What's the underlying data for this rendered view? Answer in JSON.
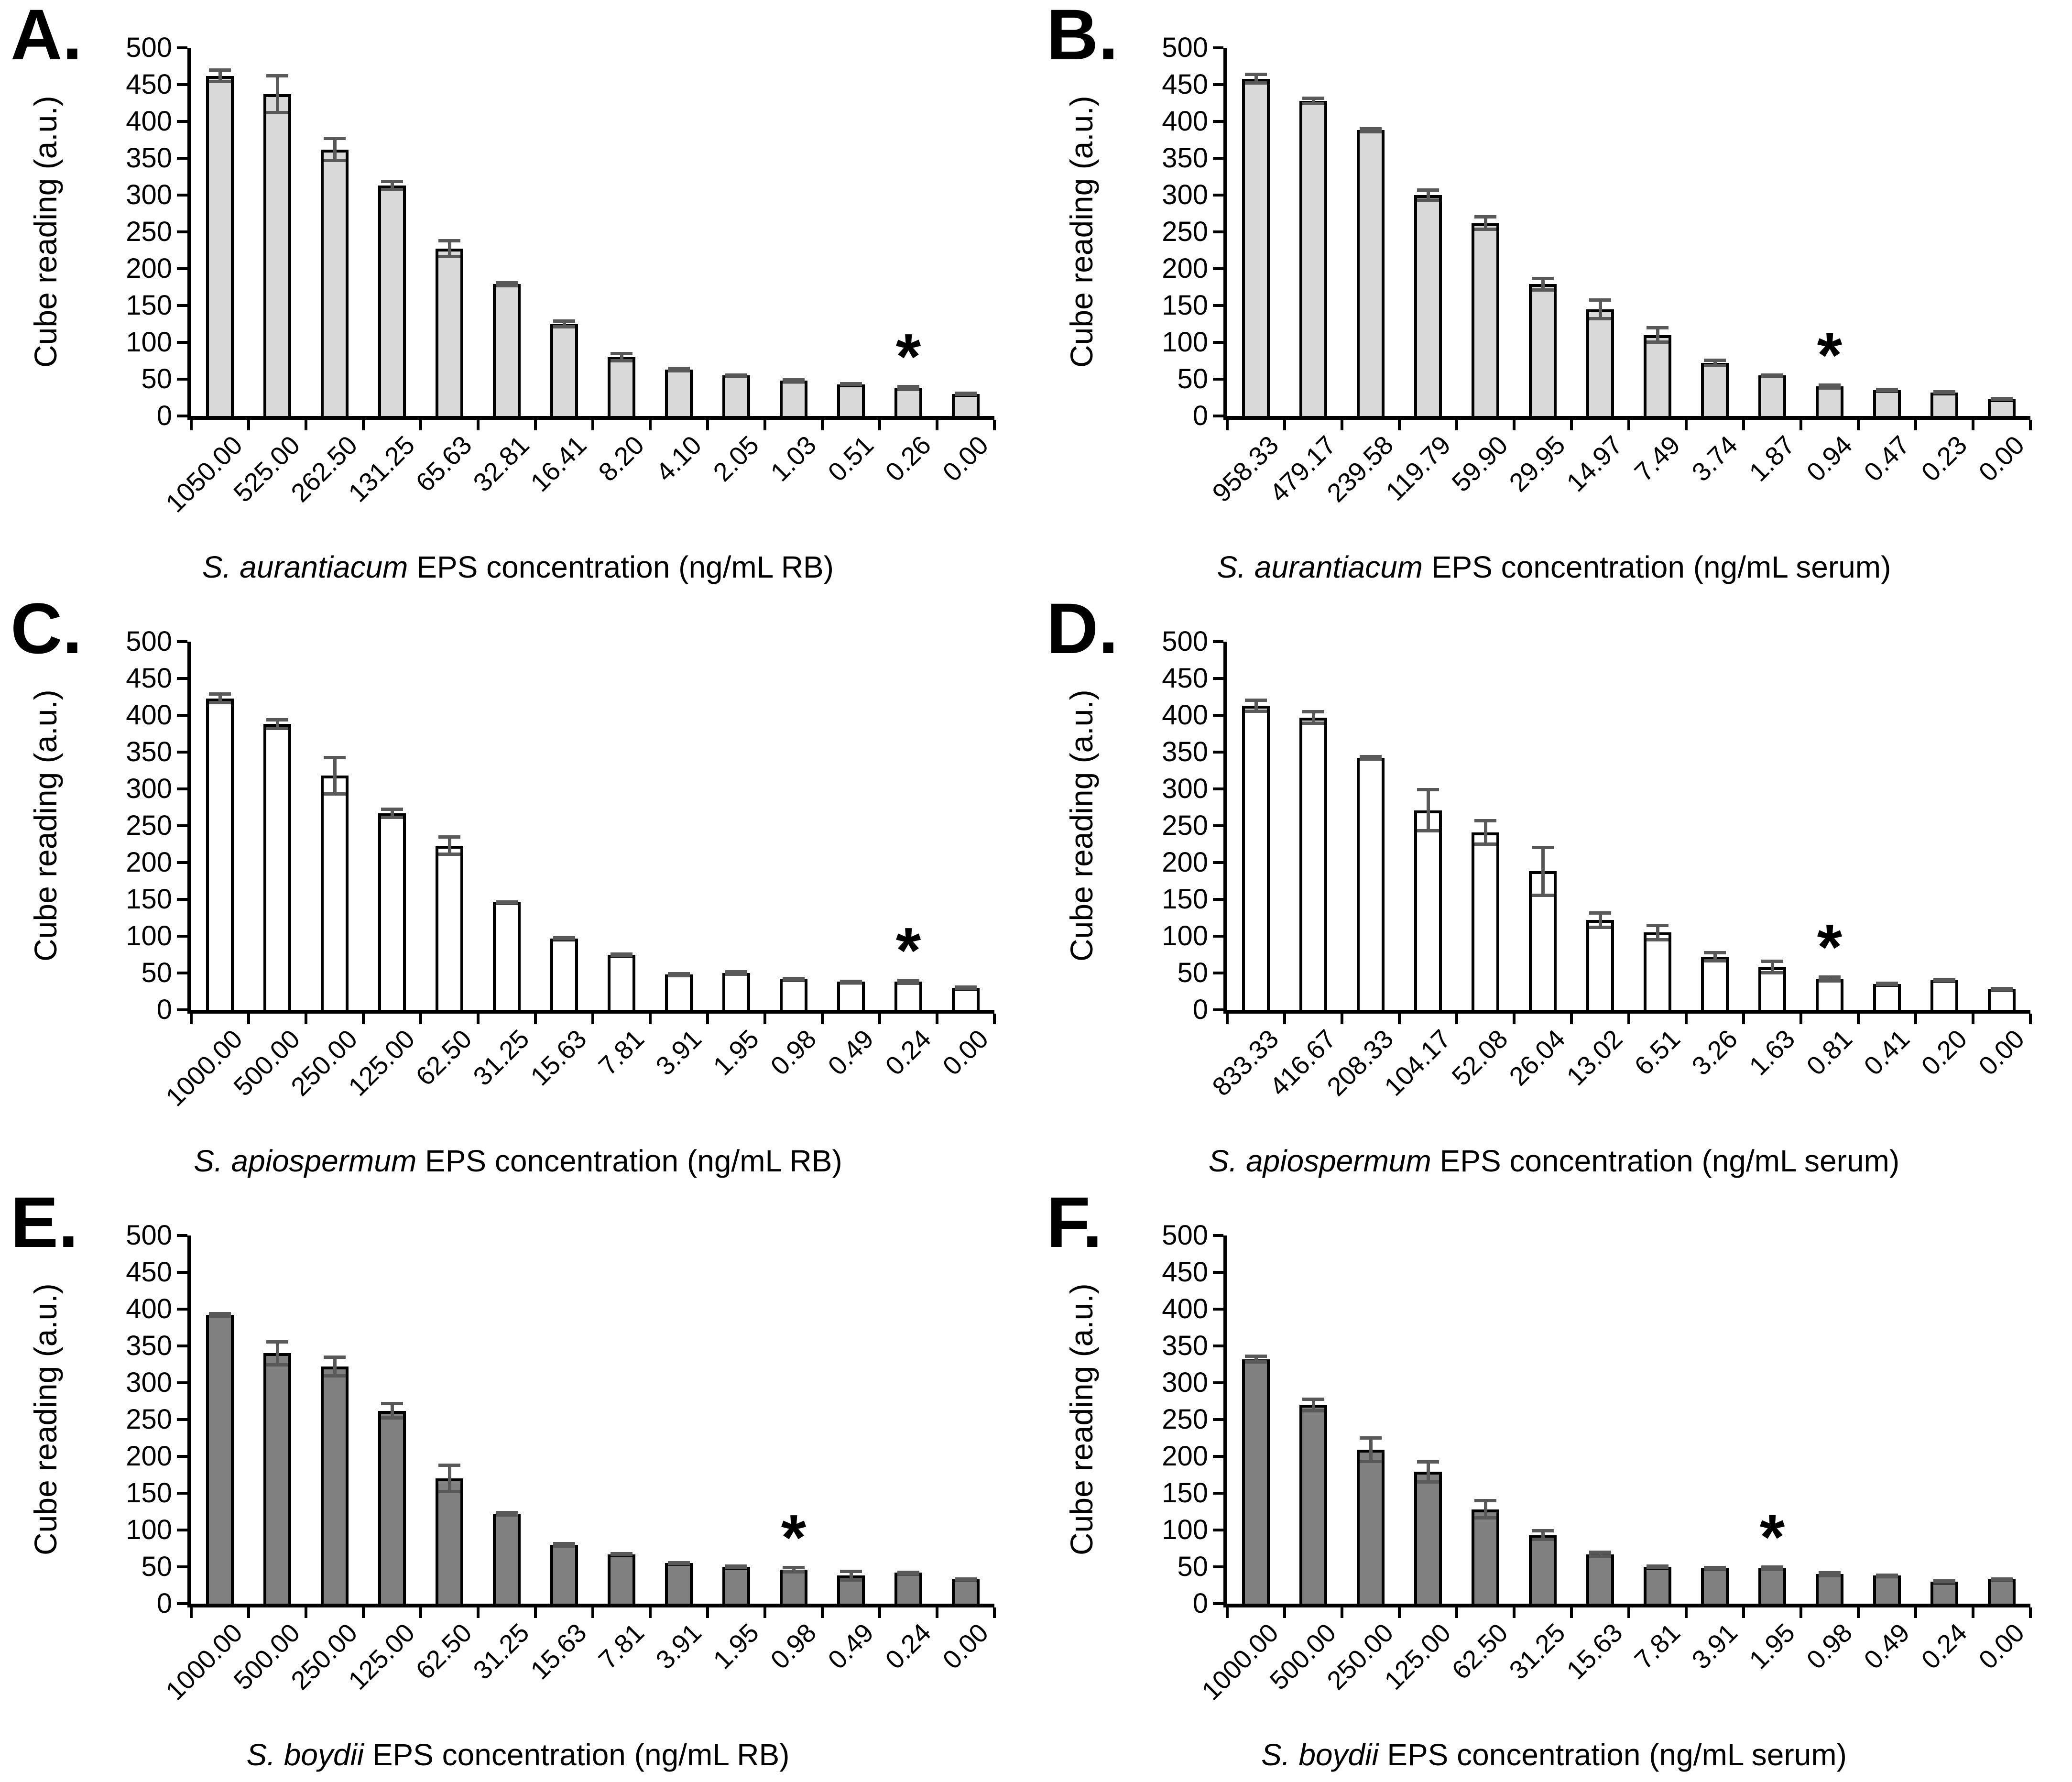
{
  "figure": {
    "background": "#ffffff",
    "axis_color": "#000000",
    "bar_outline_color": "#000000",
    "error_bar_color": "#595959",
    "y_axis_label": "Cube reading (a.u.)"
  },
  "chart_data": [
    {
      "type": "bar",
      "panel_letter": "A.",
      "title_species": "S. aurantiacum",
      "title_rest": " EPS concentration (ng/mL RB)",
      "ylabel": "Cube reading (a.u.)",
      "ylim": [
        0,
        500
      ],
      "y_tick_step": 50,
      "grid": false,
      "bar_fill": "#d9d9d9",
      "categories": [
        "1050.00",
        "525.00",
        "262.50",
        "131.25",
        "65.63",
        "32.81",
        "16.41",
        "8.20",
        "4.10",
        "2.05",
        "1.03",
        "0.51",
        "0.26",
        "0.00"
      ],
      "values": [
        462,
        437,
        362,
        313,
        227,
        179,
        125,
        80,
        63,
        55,
        48,
        43,
        38,
        30
      ],
      "errors": [
        10,
        27,
        17,
        8,
        13,
        4,
        6,
        7,
        4,
        3,
        3,
        3,
        4,
        3
      ],
      "star_index": 12,
      "star_label": "*"
    },
    {
      "type": "bar",
      "panel_letter": "B.",
      "title_species": "S. aurantiacum",
      "title_rest": " EPS concentration (ng/mL serum)",
      "ylabel": "Cube reading (a.u.)",
      "ylim": [
        0,
        500
      ],
      "y_tick_step": 50,
      "grid": false,
      "bar_fill": "#d9d9d9",
      "categories": [
        "958.33",
        "479.17",
        "239.58",
        "119.79",
        "59.90",
        "29.95",
        "14.97",
        "7.49",
        "3.74",
        "1.87",
        "0.94",
        "0.47",
        "0.23",
        "0.00"
      ],
      "values": [
        458,
        428,
        388,
        300,
        262,
        179,
        145,
        110,
        72,
        55,
        40,
        35,
        32,
        23
      ],
      "errors": [
        8,
        6,
        4,
        9,
        11,
        10,
        15,
        12,
        6,
        3,
        4,
        3,
        3,
        3
      ],
      "star_index": 10,
      "star_label": "*"
    },
    {
      "type": "bar",
      "panel_letter": "C.",
      "title_species": "S. apiospermum",
      "title_rest": " EPS concentration (ng/mL RB)",
      "ylabel": "Cube reading (a.u.)",
      "ylim": [
        0,
        500
      ],
      "y_tick_step": 50,
      "grid": false,
      "bar_fill": "#ffffff",
      "categories": [
        "1000.00",
        "500.00",
        "250.00",
        "125.00",
        "62.50",
        "31.25",
        "15.63",
        "7.81",
        "3.91",
        "1.95",
        "0.98",
        "0.49",
        "0.24",
        "0.00"
      ],
      "values": [
        423,
        388,
        318,
        267,
        223,
        146,
        97,
        75,
        48,
        50,
        42,
        38,
        38,
        30
      ],
      "errors": [
        8,
        8,
        27,
        8,
        14,
        3,
        3,
        3,
        3,
        4,
        3,
        3,
        4,
        3
      ],
      "star_index": 12,
      "star_label": "*"
    },
    {
      "type": "bar",
      "panel_letter": "D.",
      "title_species": "S. apiospermum",
      "title_rest": " EPS concentration (ng/mL serum)",
      "ylabel": "Cube reading (a.u.)",
      "ylim": [
        0,
        500
      ],
      "y_tick_step": 50,
      "grid": false,
      "bar_fill": "#ffffff",
      "categories": [
        "833.33",
        "416.67",
        "208.33",
        "104.17",
        "52.08",
        "26.04",
        "13.02",
        "6.51",
        "3.26",
        "1.63",
        "0.81",
        "0.41",
        "0.20",
        "0.00"
      ],
      "values": [
        413,
        397,
        342,
        271,
        241,
        188,
        122,
        105,
        72,
        58,
        42,
        35,
        40,
        28
      ],
      "errors": [
        10,
        10,
        4,
        30,
        18,
        35,
        12,
        12,
        8,
        10,
        5,
        3,
        3,
        3
      ],
      "star_index": 10,
      "star_label": "*"
    },
    {
      "type": "bar",
      "panel_letter": "E.",
      "title_species": "S. boydii",
      "title_rest": " EPS concentration (ng/mL RB)",
      "ylabel": "Cube reading (a.u.)",
      "ylim": [
        0,
        500
      ],
      "y_tick_step": 50,
      "grid": false,
      "bar_fill": "#808080",
      "categories": [
        "1000.00",
        "500.00",
        "250.00",
        "125.00",
        "62.50",
        "31.25",
        "15.63",
        "7.81",
        "3.91",
        "1.95",
        "0.98",
        "0.49",
        "0.24",
        "0.00"
      ],
      "values": [
        392,
        340,
        322,
        262,
        170,
        122,
        80,
        67,
        55,
        50,
        46,
        38,
        42,
        33
      ],
      "errors": [
        4,
        18,
        15,
        12,
        20,
        4,
        4,
        3,
        3,
        3,
        5,
        8,
        3,
        3
      ],
      "star_index": 10,
      "star_label": "*"
    },
    {
      "type": "bar",
      "panel_letter": "F.",
      "title_species": "S. boydii",
      "title_rest": " EPS concentration (ng/mL serum)",
      "ylabel": "Cube reading (a.u.)",
      "ylim": [
        0,
        500
      ],
      "y_tick_step": 50,
      "grid": false,
      "bar_fill": "#808080",
      "categories": [
        "1000.00",
        "500.00",
        "250.00",
        "125.00",
        "62.50",
        "31.25",
        "15.63",
        "7.81",
        "3.91",
        "1.95",
        "0.98",
        "0.49",
        "0.24",
        "0.00"
      ],
      "values": [
        332,
        270,
        209,
        179,
        128,
        93,
        67,
        50,
        48,
        48,
        40,
        38,
        30,
        33
      ],
      "errors": [
        6,
        10,
        18,
        16,
        14,
        8,
        5,
        3,
        3,
        4,
        4,
        3,
        3,
        3
      ],
      "star_index": 9,
      "star_label": "*"
    }
  ]
}
